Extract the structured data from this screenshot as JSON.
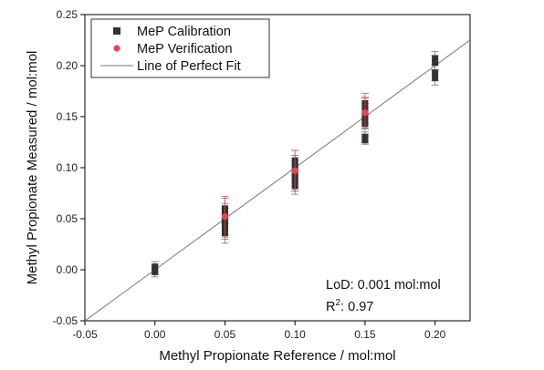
{
  "chart_data": {
    "type": "scatter",
    "title": "",
    "xlabel": "Methyl Propionate Reference / mol:mol",
    "ylabel": "Methyl Propionate Measured / mol:mol",
    "xlim": [
      -0.05,
      0.225
    ],
    "ylim": [
      -0.05,
      0.25
    ],
    "xticks": [
      -0.05,
      0.0,
      0.05,
      0.1,
      0.15,
      0.2
    ],
    "xtick_labels": [
      "-0.05",
      "0.00",
      "0.05",
      "0.10",
      "0.15",
      "0.20"
    ],
    "yticks": [
      -0.05,
      0.0,
      0.05,
      0.1,
      0.15,
      0.2,
      0.25
    ],
    "ytick_labels": [
      "-0.05",
      "0.00",
      "0.05",
      "0.10",
      "0.15",
      "0.20",
      "0.25"
    ],
    "grid": false,
    "legend_position": "top-left",
    "series": [
      {
        "name": "MeP Calibration",
        "marker": "square",
        "color": "#333333",
        "errorbar_color": "#777777",
        "points": [
          {
            "x": 0.0,
            "y": 0.003,
            "err": 0.005
          },
          {
            "x": 0.0,
            "y": 0.0,
            "err": 0.005
          },
          {
            "x": 0.0,
            "y": -0.002,
            "err": 0.005
          },
          {
            "x": 0.05,
            "y": 0.06,
            "err": 0.01
          },
          {
            "x": 0.05,
            "y": 0.055,
            "err": 0.01
          },
          {
            "x": 0.05,
            "y": 0.05,
            "err": 0.01
          },
          {
            "x": 0.05,
            "y": 0.045,
            "err": 0.01
          },
          {
            "x": 0.05,
            "y": 0.04,
            "err": 0.01
          },
          {
            "x": 0.05,
            "y": 0.036,
            "err": 0.01
          },
          {
            "x": 0.1,
            "y": 0.107,
            "err": 0.01
          },
          {
            "x": 0.1,
            "y": 0.102,
            "err": 0.01
          },
          {
            "x": 0.1,
            "y": 0.097,
            "err": 0.01
          },
          {
            "x": 0.1,
            "y": 0.092,
            "err": 0.01
          },
          {
            "x": 0.1,
            "y": 0.087,
            "err": 0.01
          },
          {
            "x": 0.1,
            "y": 0.082,
            "err": 0.008
          },
          {
            "x": 0.15,
            "y": 0.163,
            "err": 0.01
          },
          {
            "x": 0.15,
            "y": 0.158,
            "err": 0.01
          },
          {
            "x": 0.15,
            "y": 0.153,
            "err": 0.01
          },
          {
            "x": 0.15,
            "y": 0.148,
            "err": 0.01
          },
          {
            "x": 0.15,
            "y": 0.143,
            "err": 0.01
          },
          {
            "x": 0.15,
            "y": 0.13,
            "err": 0.005
          },
          {
            "x": 0.15,
            "y": 0.127,
            "err": 0.004
          },
          {
            "x": 0.2,
            "y": 0.207,
            "err": 0.007
          },
          {
            "x": 0.2,
            "y": 0.203,
            "err": 0.007
          },
          {
            "x": 0.2,
            "y": 0.193,
            "err": 0.008
          },
          {
            "x": 0.2,
            "y": 0.188,
            "err": 0.007
          }
        ]
      },
      {
        "name": "MeP Verification",
        "marker": "circle",
        "color": "#e8454a",
        "errorbar_color": "#e8454a",
        "points": [
          {
            "x": 0.05,
            "y": 0.052,
            "err": 0.02
          },
          {
            "x": 0.1,
            "y": 0.097,
            "err": 0.02
          },
          {
            "x": 0.15,
            "y": 0.154,
            "err": 0.015
          }
        ]
      },
      {
        "name": "Line of Perfect Fit",
        "type": "line",
        "color": "#777777",
        "points": [
          {
            "x": -0.05,
            "y": -0.05
          },
          {
            "x": 0.225,
            "y": 0.225
          }
        ]
      }
    ],
    "annotations": {
      "lod_text": "LoD: 0.001 mol:mol",
      "r2_prefix": "R",
      "r2_sup": "2",
      "r2_value": ": 0.97"
    }
  }
}
